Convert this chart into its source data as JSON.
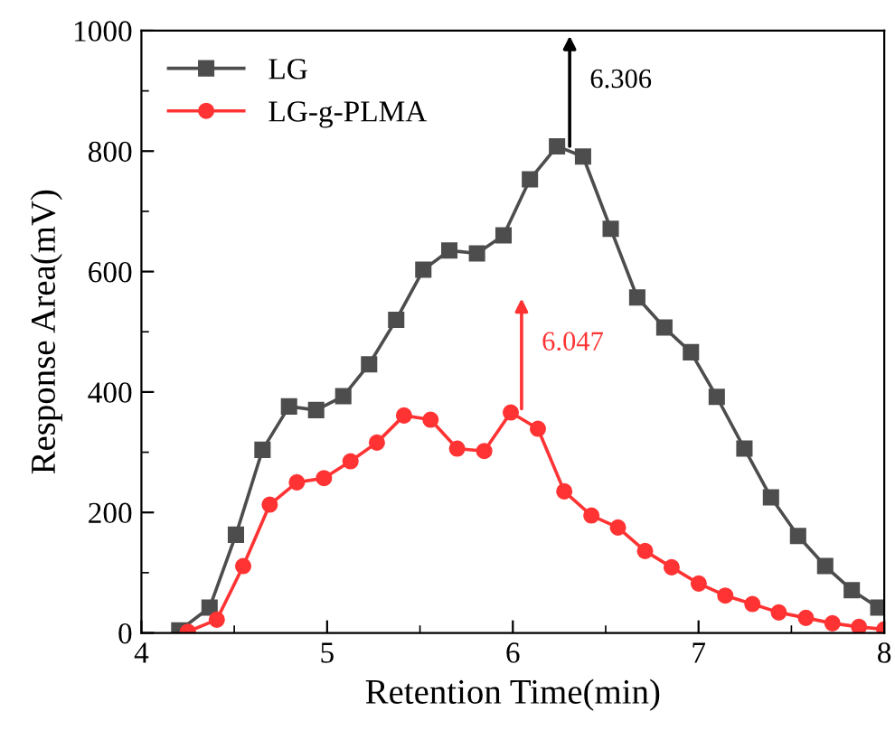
{
  "chart_data": {
    "type": "line",
    "xlabel": "Retention Time(min)",
    "ylabel": "Response Area(mV)",
    "xlim": [
      4,
      8
    ],
    "xticks": [
      4,
      5,
      6,
      7,
      8
    ],
    "ylim": [
      0,
      1000
    ],
    "yticks": [
      0,
      200,
      400,
      600,
      800,
      1000
    ],
    "grid": false,
    "legend": "top left",
    "line_style": "solid",
    "series": [
      {
        "name": "LG",
        "color": "#4d4d4d",
        "marker": "square",
        "x": [
          4.204,
          4.367,
          4.509,
          4.652,
          4.795,
          4.941,
          5.087,
          5.226,
          5.372,
          5.518,
          5.658,
          5.807,
          5.95,
          6.092,
          6.238,
          6.378,
          6.527,
          6.67,
          6.816,
          6.959,
          7.098,
          7.247,
          7.39,
          7.536,
          7.682,
          7.825,
          7.968
        ],
        "values": [
          4,
          42,
          163,
          304,
          376,
          370,
          393,
          446,
          520,
          603,
          635,
          630,
          660,
          753,
          808,
          791,
          671,
          557,
          507,
          466,
          392,
          306,
          225,
          161,
          111,
          71,
          42
        ]
      },
      {
        "name": "LG-g-PLMA",
        "color": "#ff3333",
        "marker": "circle",
        "x": [
          4.25,
          4.406,
          4.548,
          4.691,
          4.837,
          4.983,
          5.126,
          5.268,
          5.414,
          5.557,
          5.7,
          5.846,
          5.989,
          6.135,
          6.277,
          6.423,
          6.566,
          6.712,
          6.855,
          7.001,
          7.144,
          7.29,
          7.432,
          7.578,
          7.721,
          7.864,
          8.0
        ],
        "values": [
          2,
          22,
          111,
          213,
          250,
          257,
          285,
          316,
          361,
          354,
          306,
          302,
          366,
          339,
          235,
          195,
          175,
          136,
          109,
          82,
          62,
          48,
          34,
          25,
          16,
          10,
          6
        ]
      }
    ],
    "annotations": [
      {
        "text": "6.306",
        "x": 6.306,
        "y": 808
      },
      {
        "text": "6.047",
        "x": 6.047,
        "y": 372
      }
    ]
  }
}
